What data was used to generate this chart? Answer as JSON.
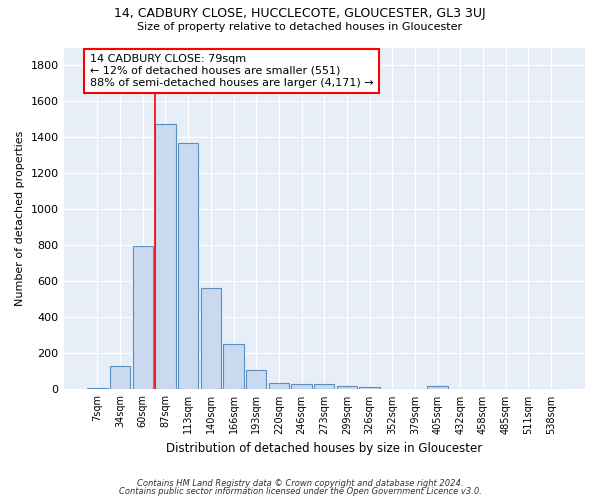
{
  "title": "14, CADBURY CLOSE, HUCCLECOTE, GLOUCESTER, GL3 3UJ",
  "subtitle": "Size of property relative to detached houses in Gloucester",
  "xlabel": "Distribution of detached houses by size in Gloucester",
  "ylabel": "Number of detached properties",
  "bar_color": "#c9d9ef",
  "bar_edge_color": "#5a8fc2",
  "background_color": "#e8eef8",
  "grid_color": "#ffffff",
  "categories": [
    "7sqm",
    "34sqm",
    "60sqm",
    "87sqm",
    "113sqm",
    "140sqm",
    "166sqm",
    "193sqm",
    "220sqm",
    "246sqm",
    "273sqm",
    "299sqm",
    "326sqm",
    "352sqm",
    "379sqm",
    "405sqm",
    "432sqm",
    "458sqm",
    "485sqm",
    "511sqm",
    "538sqm"
  ],
  "values": [
    10,
    130,
    795,
    1475,
    1370,
    565,
    250,
    110,
    35,
    30,
    30,
    20,
    15,
    0,
    0,
    18,
    0,
    0,
    0,
    0,
    0
  ],
  "ylim": [
    0,
    1900
  ],
  "yticks": [
    0,
    200,
    400,
    600,
    800,
    1000,
    1200,
    1400,
    1600,
    1800
  ],
  "red_line_x": 3,
  "annotation_text": "14 CADBURY CLOSE: 79sqm\n← 12% of detached houses are smaller (551)\n88% of semi-detached houses are larger (4,171) →",
  "footer_line1": "Contains HM Land Registry data © Crown copyright and database right 2024.",
  "footer_line2": "Contains public sector information licensed under the Open Government Licence v3.0."
}
